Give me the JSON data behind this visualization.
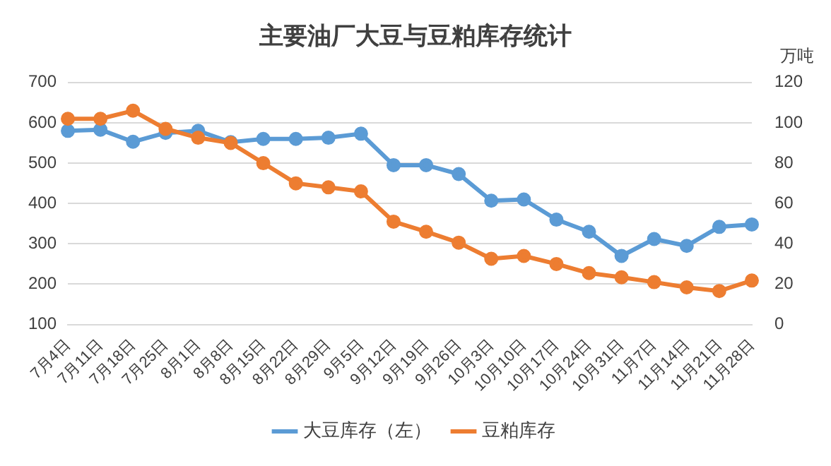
{
  "chart_data": {
    "type": "line",
    "title": "主要油厂大豆与豆粕库存统计",
    "y2label": "万吨",
    "categories": [
      "7月4日",
      "7月11日",
      "7月18日",
      "7月25日",
      "8月1日",
      "8月8日",
      "8月15日",
      "8月22日",
      "8月29日",
      "9月5日",
      "9月12日",
      "9月19日",
      "9月26日",
      "10月3日",
      "10月10日",
      "10月17日",
      "10月24日",
      "10月31日",
      "11月7日",
      "11月14日",
      "11月21日",
      "11月28日"
    ],
    "series": [
      {
        "name": "大豆库存（左）",
        "color": "#5b9bd5",
        "values": [
          580,
          583,
          553,
          575,
          580,
          552,
          560,
          560,
          563,
          573,
          495,
          495,
          473,
          407,
          410,
          360,
          330,
          270,
          312,
          295,
          342,
          348
        ]
      },
      {
        "name": "豆粕库存",
        "color": "#ed7d31",
        "axis": "y2",
        "values": [
          102,
          102,
          106,
          97,
          92.6,
          90,
          80,
          70,
          68,
          66,
          51,
          46,
          40.6,
          32.6,
          34,
          30,
          25.5,
          23.4,
          21,
          18.4,
          16.6,
          21.8
        ]
      }
    ],
    "ylim": [
      100,
      700
    ],
    "yticks": [
      100,
      200,
      300,
      400,
      500,
      600,
      700
    ],
    "y2lim": [
      0,
      120
    ],
    "y2ticks": [
      0,
      20,
      40,
      60,
      80,
      100,
      120
    ],
    "grid": "y",
    "legend": "bottom",
    "marker": "circle",
    "line_style": "solid"
  }
}
